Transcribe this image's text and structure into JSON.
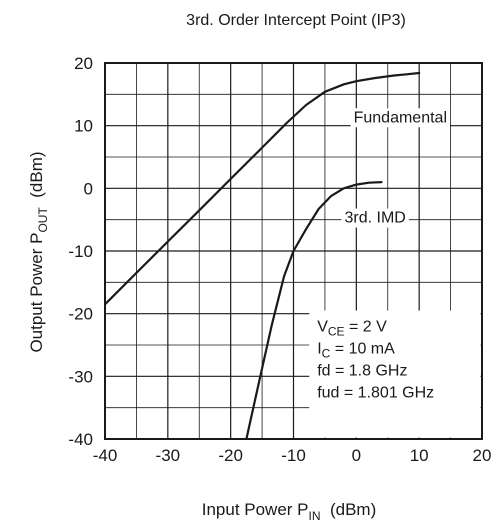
{
  "chart_data": {
    "type": "line",
    "title": "3rd. Order Intercept Point (IP3)",
    "xlabel": {
      "main": "Input Power   P",
      "sub": "IN",
      "unit": "  (dBm)"
    },
    "ylabel": {
      "main": "Output Power   P",
      "sub": "OUT",
      "unit": "  (dBm)"
    },
    "xlim": [
      -40,
      20
    ],
    "ylim": [
      -40,
      20
    ],
    "x_ticks": [
      -40,
      -30,
      -20,
      -10,
      0,
      10,
      20
    ],
    "y_ticks": [
      -40,
      -30,
      -20,
      -10,
      0,
      10,
      20
    ],
    "grid": true,
    "series": [
      {
        "name": "Fundamental",
        "x": [
          -40,
          -35,
          -30,
          -25,
          -20,
          -15,
          -11,
          -8,
          -5,
          -2,
          0,
          3,
          6,
          8,
          10
        ],
        "y": [
          -18.5,
          -13.5,
          -8.5,
          -3.5,
          1.5,
          6.5,
          10.5,
          13.3,
          15.4,
          16.6,
          17.1,
          17.6,
          18,
          18.2,
          18.4
        ]
      },
      {
        "name": "3rd. IMD",
        "x": [
          -17.5,
          -15.5,
          -13.5,
          -11.5,
          -10,
          -8,
          -6,
          -4,
          -2,
          0,
          2,
          4
        ],
        "y": [
          -40,
          -31,
          -22,
          -14,
          -10,
          -6.5,
          -3.3,
          -1.2,
          0,
          0.6,
          0.9,
          1
        ]
      }
    ],
    "annotations": [
      {
        "text": "Fundamental",
        "x": 7,
        "y": 11.5
      },
      {
        "text": "3rd. IMD",
        "x": 3,
        "y": -4.5
      }
    ],
    "conditions": [
      {
        "main": "V",
        "sub": "CE",
        "rest": " = 2 V"
      },
      {
        "main": "I",
        "sub": "C",
        "rest": " = 10 mA"
      },
      {
        "main": "fd = 1.8 GHz",
        "sub": "",
        "rest": ""
      },
      {
        "main": "fud = 1.801 GHz",
        "sub": "",
        "rest": ""
      }
    ],
    "colors": {
      "line": "#1a1a1a",
      "grid": "#1a1a1a",
      "background": "#ffffff"
    }
  }
}
